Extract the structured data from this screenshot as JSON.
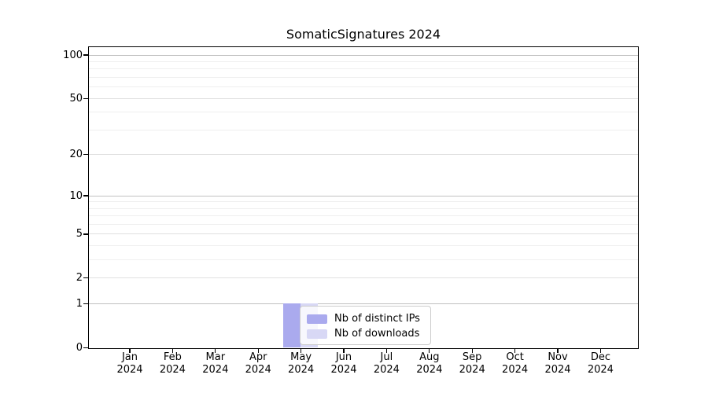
{
  "chart_data": {
    "type": "bar",
    "title": "SomaticSignatures 2024",
    "categories": [
      "Jan 2024",
      "Feb 2024",
      "Mar 2024",
      "Apr 2024",
      "May 2024",
      "Jun 2024",
      "Jul 2024",
      "Aug 2024",
      "Sep 2024",
      "Oct 2024",
      "Nov 2024",
      "Dec 2024"
    ],
    "x_tick_month_labels": [
      "Jan",
      "Feb",
      "Mar",
      "Apr",
      "May",
      "Jun",
      "Jul",
      "Aug",
      "Sep",
      "Oct",
      "Nov",
      "Dec"
    ],
    "x_tick_year_label": "2024",
    "series": [
      {
        "name": "Nb of distinct IPs",
        "color": "#aaaaee",
        "values": [
          0,
          0,
          0,
          0,
          1,
          0,
          0,
          0,
          0,
          0,
          0,
          0
        ]
      },
      {
        "name": "Nb of downloads",
        "color": "#d8d8f5",
        "values": [
          0,
          0,
          0,
          0,
          1,
          0,
          0,
          0,
          0,
          0,
          0,
          0
        ]
      }
    ],
    "xlabel": "",
    "ylabel": "",
    "y_axis": {
      "scale": "log1p",
      "tick_values": [
        0,
        1,
        2,
        5,
        10,
        20,
        50,
        100
      ],
      "tick_labels": [
        "0",
        "1",
        "2",
        "5",
        "10",
        "20",
        "50",
        "100"
      ],
      "minor_gridline_values": [
        3,
        4,
        6,
        7,
        8,
        9,
        30,
        40,
        60,
        70,
        80,
        90
      ]
    },
    "grid": true,
    "legend": {
      "position": "inside-lower-center-left",
      "entries": [
        "Nb of distinct IPs",
        "Nb of downloads"
      ]
    }
  },
  "colors": {
    "background": "#ffffff",
    "axis_frame": "#000000",
    "major_gridline": "#c0c0c0",
    "semi_major_gridline": "#e0e0e0",
    "minor_gridline": "#efefef",
    "legend_border": "#cccccc",
    "text": "#000000"
  }
}
